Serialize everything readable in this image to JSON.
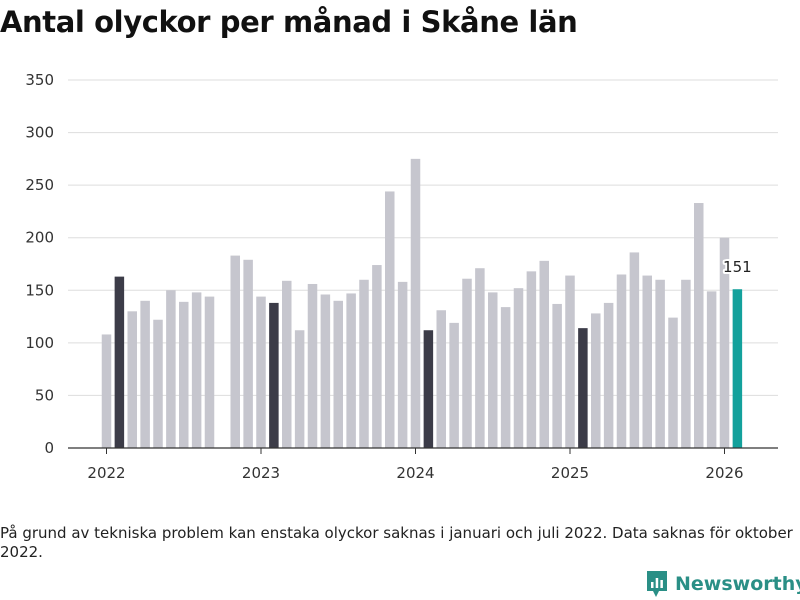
{
  "chart_data": {
    "type": "bar",
    "title": "Antal olyckor per månad i Skåne län",
    "xlabel": "",
    "ylabel": "",
    "ylim": [
      0,
      350
    ],
    "yticks": [
      0,
      50,
      100,
      150,
      200,
      250,
      300,
      350
    ],
    "xticks": [
      {
        "label": "2022",
        "month_index": 0
      },
      {
        "label": "2023",
        "month_index": 12
      },
      {
        "label": "2024",
        "month_index": 24
      },
      {
        "label": "2025",
        "month_index": 36
      },
      {
        "label": "2026",
        "month_index": 48
      }
    ],
    "start": "2022-01",
    "values": [
      108,
      163,
      130,
      140,
      122,
      150,
      139,
      148,
      144,
      null,
      183,
      179,
      144,
      138,
      159,
      112,
      156,
      146,
      140,
      147,
      160,
      174,
      244,
      158,
      275,
      112,
      131,
      119,
      161,
      171,
      148,
      134,
      152,
      168,
      178,
      137,
      164,
      114,
      128,
      138,
      165,
      186,
      164,
      160,
      124,
      160,
      233,
      149,
      200,
      151
    ],
    "colors": {
      "default": "#c6c6ce",
      "january": "#3c3c48",
      "latest": "#13a19c",
      "grid": "#dddddd",
      "axis": "#333333"
    },
    "annotation": {
      "label": "151",
      "month_index": 49
    },
    "grid": true
  },
  "note": "På grund av tekniska problem kan enstaka olyckor saknas i januari och juli 2022. Data saknas för oktober 2022.",
  "brand": {
    "name": "Newsworthy",
    "color": "#2a8f86"
  }
}
